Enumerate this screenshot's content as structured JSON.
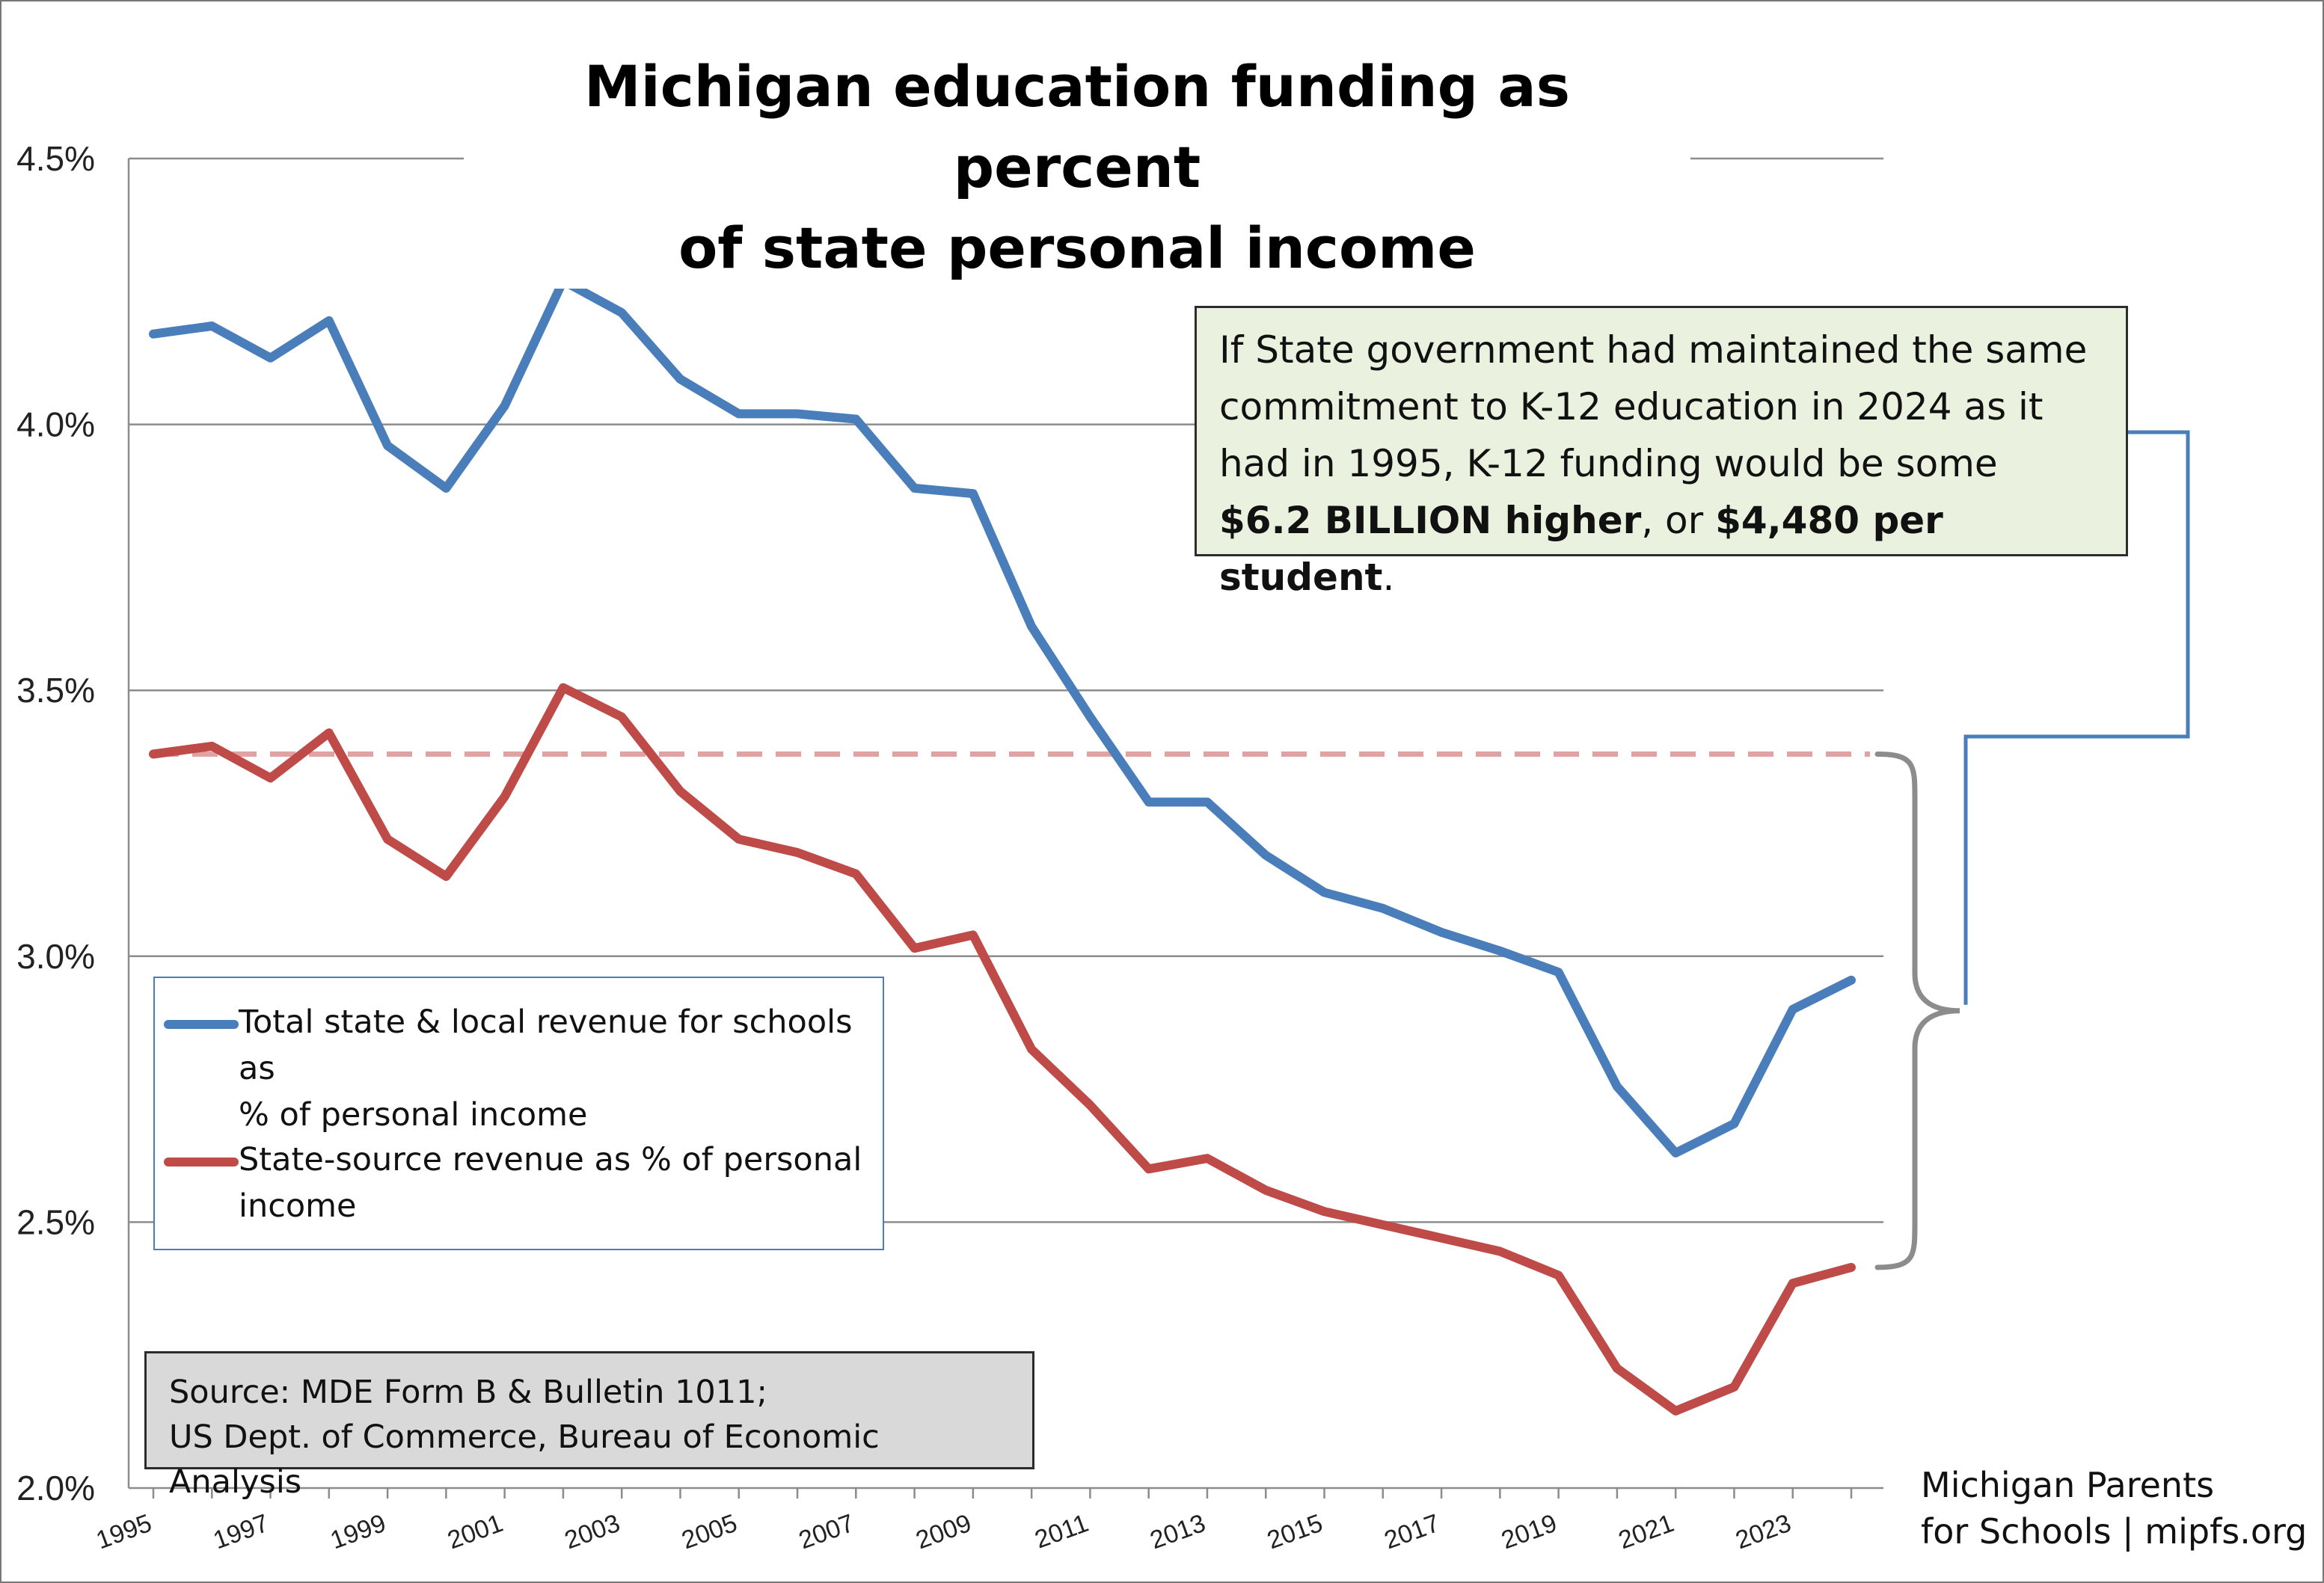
{
  "title_line1": "Michigan education funding as percent",
  "title_line2": "of state personal income",
  "callout": {
    "line1": "If State government had maintained the same",
    "line2": "commitment to K-12 education in 2024 as it",
    "line3": "had in 1995, K-12 funding would be some",
    "bold1": "$6.2 BILLION higher",
    "mid": ", or ",
    "bold2": "$4,480 per student",
    "end": "."
  },
  "legend": {
    "item1_line1": "Total state & local revenue for schools as",
    "item1_line2": "% of personal income",
    "item2_line1": "State-source revenue as % of personal",
    "item2_line2": "income"
  },
  "source": {
    "line1": "Source: MDE Form B & Bulletin 1011;",
    "line2": "US Dept. of Commerce, Bureau of Economic Analysis"
  },
  "credit": {
    "line1": "Michigan Parents",
    "line2": "for Schools | mipfs.org"
  },
  "colors": {
    "total": "#4a7ebb",
    "state": "#be4b48",
    "reference": "#e0a3a1",
    "gridline": "#8c8c8c",
    "callout_bg": "#eaf1de",
    "source_bg": "#d9d9d9",
    "brace_gray": "#8c8c8c",
    "bracket_blue": "#4a7ebb"
  },
  "chart_data": {
    "type": "line",
    "x": [
      1995,
      1996,
      1997,
      1998,
      1999,
      2000,
      2001,
      2002,
      2003,
      2004,
      2005,
      2006,
      2007,
      2008,
      2009,
      2010,
      2011,
      2012,
      2013,
      2014,
      2015,
      2016,
      2017,
      2018,
      2019,
      2020,
      2021,
      2022,
      2023,
      2024
    ],
    "x_tick_labels": [
      "1995",
      "1997",
      "1999",
      "2001",
      "2003",
      "2005",
      "2007",
      "2009",
      "2011",
      "2013",
      "2015",
      "2017",
      "2019",
      "2021",
      "2023"
    ],
    "y_tick_labels": [
      "2.0%",
      "2.5%",
      "3.0%",
      "3.5%",
      "4.0%",
      "4.5%"
    ],
    "y_ticks": [
      2.0,
      2.5,
      3.0,
      3.5,
      4.0,
      4.5
    ],
    "ylim": [
      2.0,
      4.5
    ],
    "series": [
      {
        "name": "Total state & local revenue for schools as % of personal income",
        "values": [
          4.17,
          4.185,
          4.125,
          4.195,
          3.96,
          3.88,
          4.035,
          4.27,
          4.21,
          4.085,
          4.02,
          4.02,
          4.01,
          3.88,
          3.87,
          3.62,
          3.45,
          3.29,
          3.29,
          3.19,
          3.12,
          3.09,
          3.045,
          3.01,
          2.97,
          2.755,
          2.63,
          2.685,
          2.9,
          2.955
        ]
      },
      {
        "name": "State-source revenue as % of personal income",
        "values": [
          3.38,
          3.395,
          3.335,
          3.42,
          3.22,
          3.15,
          3.3,
          3.505,
          3.45,
          3.31,
          3.22,
          3.195,
          3.155,
          3.015,
          3.04,
          2.825,
          2.72,
          2.6,
          2.62,
          2.56,
          2.52,
          2.495,
          2.47,
          2.445,
          2.4,
          2.225,
          2.145,
          2.19,
          2.385,
          2.415
        ]
      }
    ],
    "reference_line": {
      "value": 3.38,
      "style": "dashed"
    },
    "grid": true,
    "legend_position": "bottom-left"
  }
}
